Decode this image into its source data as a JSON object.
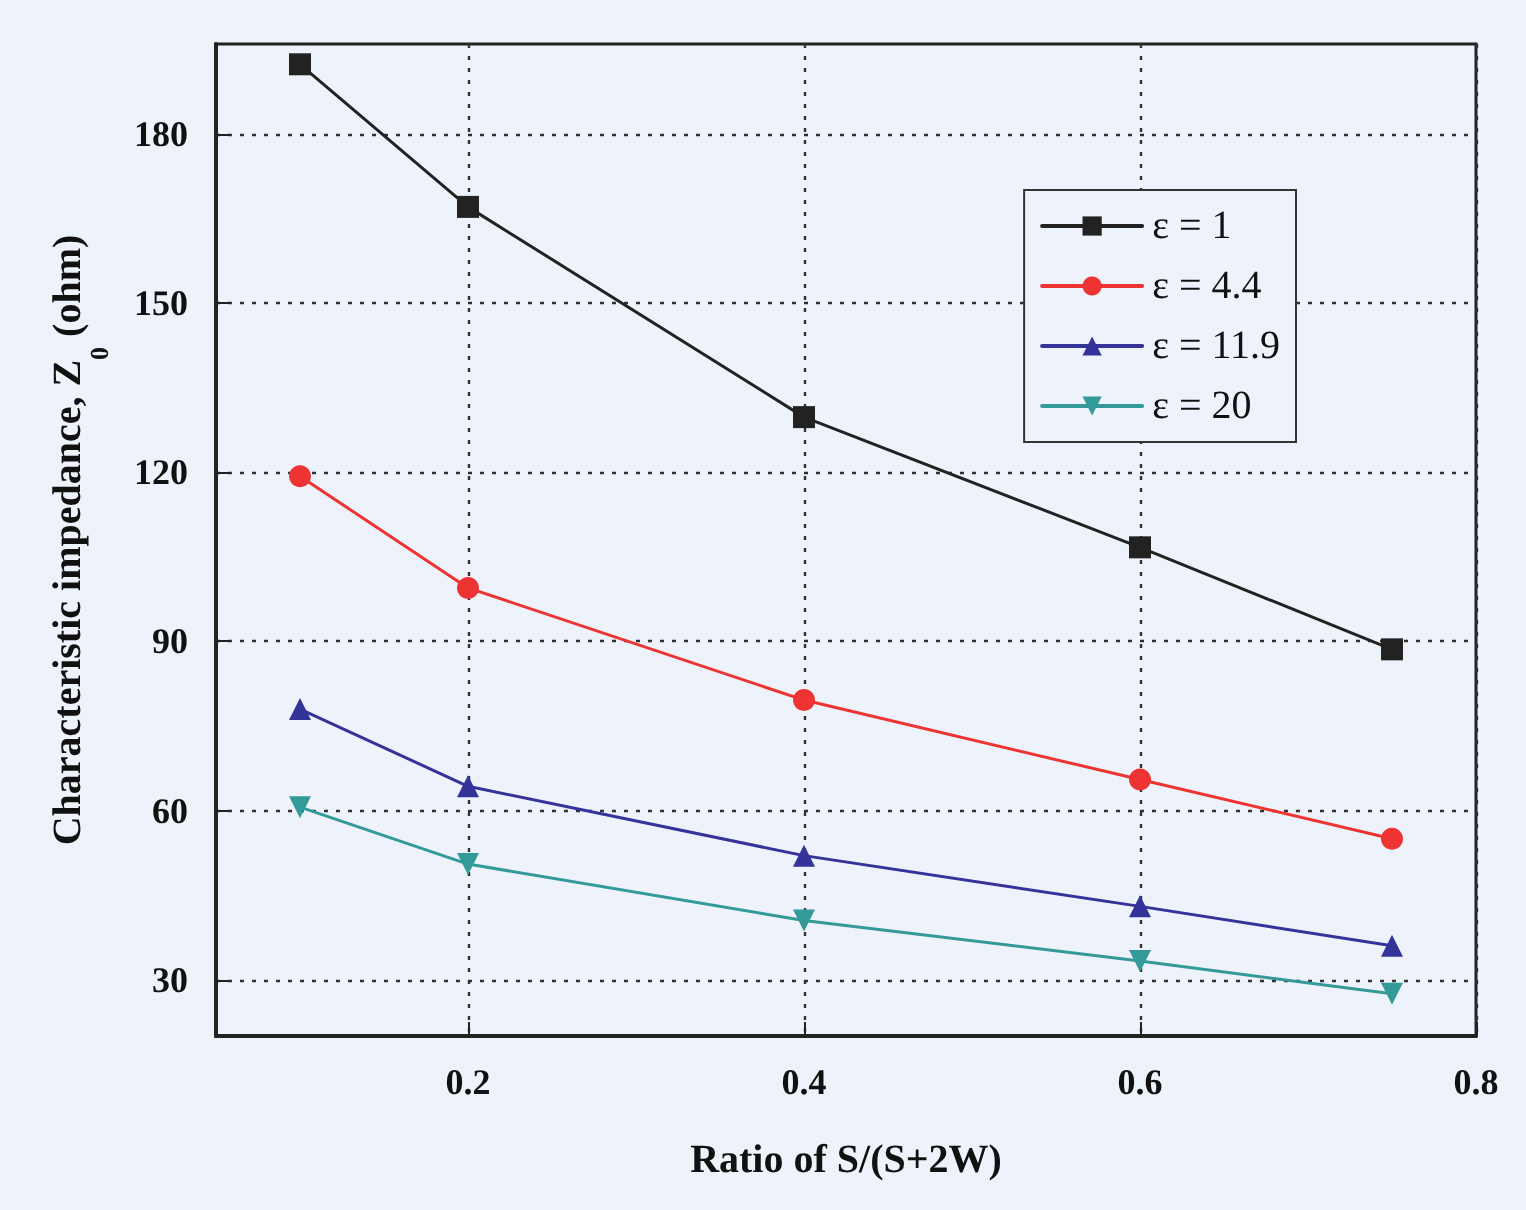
{
  "chart_data": {
    "type": "line",
    "xlabel": "Ratio of S/(S+2W)",
    "ylabel": "Characteristic impedance, Z$_{0}$ (ohm)",
    "x": [
      0.1,
      0.2,
      0.4,
      0.6,
      0.75
    ],
    "xlim": [
      0.05,
      0.8
    ],
    "xticks": [
      0.2,
      0.4,
      0.6,
      0.8
    ],
    "ylim": [
      20,
      196
    ],
    "yticks": [
      30,
      60,
      90,
      120,
      150,
      180
    ],
    "grid": true,
    "legend": "top right",
    "line_style": "solid",
    "series": [
      {
        "name": "ε = 1",
        "color": "#222222",
        "marker": "square",
        "values": [
          192.4,
          167.1,
          129.8,
          106.7,
          88.6
        ]
      },
      {
        "name": "ε = 4.4",
        "color": "#ee3333",
        "marker": "circle",
        "values": [
          119.3,
          99.5,
          79.6,
          65.5,
          55
        ]
      },
      {
        "name": "ε = 11.9",
        "color": "#333399",
        "marker": "triangle",
        "values": [
          78,
          64.3,
          52,
          43,
          36
        ]
      },
      {
        "name": "ε = 20",
        "color": "#339999",
        "marker": "triangle-down",
        "values": [
          60.6,
          50.5,
          40.5,
          33.3,
          27.5
        ]
      }
    ]
  }
}
